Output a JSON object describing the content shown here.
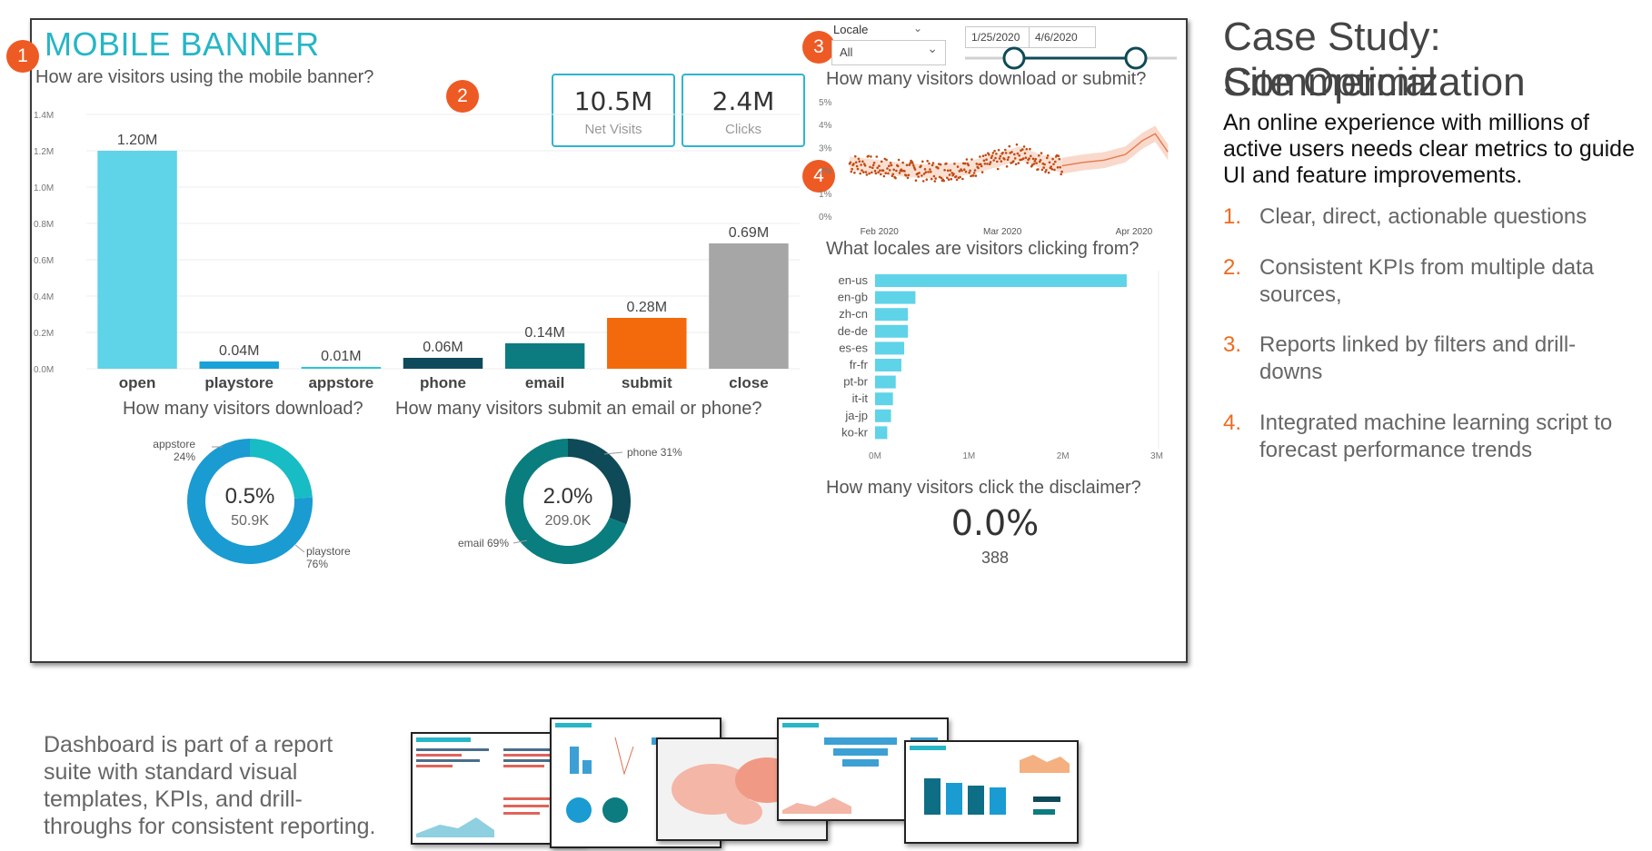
{
  "dashboard": {
    "title": "MOBILE BANNER",
    "question_usage": "How are visitors using the mobile banner?",
    "question_download_or_submit": "How many visitors download or submit?",
    "question_locales": "What locales are visitors clicking from?",
    "question_download": "How many visitors download?",
    "question_submit": "How many visitors submit an email or phone?",
    "question_disclaimer": "How many visitors click the disclaimer?",
    "kpis": [
      {
        "value": "10.5M",
        "label": "Net Visits"
      },
      {
        "value": "2.4M",
        "label": "Clicks"
      }
    ],
    "disclaimer": {
      "value": "0.0%",
      "count": "388"
    },
    "filters": {
      "locale_label": "Locale",
      "locale_value": "All",
      "start_date": "1/25/2020",
      "end_date": "4/6/2020"
    },
    "badges": [
      "1",
      "2",
      "3",
      "4"
    ]
  },
  "colors": {
    "title_teal": "#26b6c6",
    "bar_blue": "#5fd3e8",
    "dark_teal": "#0e4a5c",
    "teal": "#0c7c80",
    "orange": "#f26a0b",
    "gray": "#a6a6a6",
    "badge_orange": "#ee5a24",
    "forecast_orange": "#e8784a"
  },
  "chart_data": [
    {
      "type": "bar",
      "categories": [
        "open",
        "playstore",
        "appstore",
        "phone",
        "email",
        "submit",
        "close"
      ],
      "values": [
        1.2,
        0.04,
        0.01,
        0.06,
        0.14,
        0.28,
        0.69
      ],
      "data_labels": [
        "1.20M",
        "0.04M",
        "0.01M",
        "0.06M",
        "0.14M",
        "0.28M",
        "0.69M"
      ],
      "bar_colors": [
        "#5fd3e8",
        "#1ba1d8",
        "#2bc4d9",
        "#0e4a5c",
        "#0c7c80",
        "#f26a0b",
        "#a6a6a6"
      ],
      "ylim": [
        0,
        1.4
      ],
      "yticks": [
        "0.0M",
        "0.2M",
        "0.4M",
        "0.6M",
        "0.8M",
        "1.0M",
        "1.2M",
        "1.4M"
      ],
      "grid": true
    },
    {
      "type": "scatter",
      "xlim": [
        "2020-01-25",
        "2020-04-10"
      ],
      "xticks": [
        "Feb 2020",
        "Mar 2020",
        "Apr 2020"
      ],
      "ylim": [
        0,
        5
      ],
      "yticks": [
        "0%",
        "1%",
        "2%",
        "3%",
        "4%",
        "5%"
      ],
      "observed_trend": [
        {
          "x": "2020-01-25",
          "y": 2.3
        },
        {
          "x": "2020-02-01",
          "y": 2.15
        },
        {
          "x": "2020-02-08",
          "y": 2.0
        },
        {
          "x": "2020-02-15",
          "y": 1.95
        },
        {
          "x": "2020-02-22",
          "y": 2.1
        },
        {
          "x": "2020-02-29",
          "y": 2.45
        },
        {
          "x": "2020-03-05",
          "y": 2.75
        },
        {
          "x": "2020-03-10",
          "y": 2.4
        },
        {
          "x": "2020-03-15",
          "y": 2.2
        }
      ],
      "forecast": [
        {
          "x": "2020-03-15",
          "y": 2.2
        },
        {
          "x": "2020-03-20",
          "y": 2.35
        },
        {
          "x": "2020-03-25",
          "y": 2.45
        },
        {
          "x": "2020-03-30",
          "y": 2.7
        },
        {
          "x": "2020-04-03",
          "y": 3.3
        },
        {
          "x": "2020-04-06",
          "y": 3.6
        },
        {
          "x": "2020-04-09",
          "y": 2.8
        }
      ]
    },
    {
      "type": "bar",
      "orientation": "horizontal",
      "categories": [
        "en-us",
        "en-gb",
        "zh-cn",
        "de-de",
        "es-es",
        "fr-fr",
        "pt-br",
        "it-it",
        "ja-jp",
        "ko-kr"
      ],
      "values": [
        2.68,
        0.43,
        0.35,
        0.35,
        0.31,
        0.28,
        0.22,
        0.19,
        0.17,
        0.13
      ],
      "xlim": [
        0,
        3
      ],
      "xticks": [
        "0M",
        "1M",
        "2M",
        "3M"
      ]
    },
    {
      "type": "pie",
      "center_value": "0.5%",
      "center_sub": "50.9K",
      "slices": [
        {
          "label": "appstore",
          "pct_label": "24%",
          "value": 24,
          "color": "#17bcc4"
        },
        {
          "label": "playstore",
          "pct_label": "76%",
          "value": 76,
          "color": "#1a9bd2"
        }
      ]
    },
    {
      "type": "pie",
      "center_value": "2.0%",
      "center_sub": "209.0K",
      "slices": [
        {
          "label": "phone 31%",
          "value": 31,
          "color": "#0f4a58"
        },
        {
          "label": "email 69%",
          "value": 69,
          "color": "#0a7d7f"
        }
      ]
    }
  ],
  "case_study": {
    "title_line1": "Case Study: Commercial",
    "title_line2": "Site Optimization",
    "intro_line1": "An online experience with millions of",
    "intro_line2": "active users needs clear metrics to guide",
    "intro_line3": "UI and feature improvements.",
    "items": [
      {
        "num": "1.",
        "line1": "Clear, direct, actionable questions",
        "line2": ""
      },
      {
        "num": "2.",
        "line1": "Consistent KPIs from multiple data",
        "line2": "sources,"
      },
      {
        "num": "3.",
        "line1": "Reports linked by filters and drill-",
        "line2": "downs"
      },
      {
        "num": "4.",
        "line1": "Integrated machine learning script to",
        "line2": "forecast performance trends"
      }
    ]
  },
  "footer": {
    "line1": "Dashboard is part of a report",
    "line2": "suite with standard visual",
    "line3": "templates, KPIs, and drill-",
    "line4": "throughs for consistent reporting."
  }
}
